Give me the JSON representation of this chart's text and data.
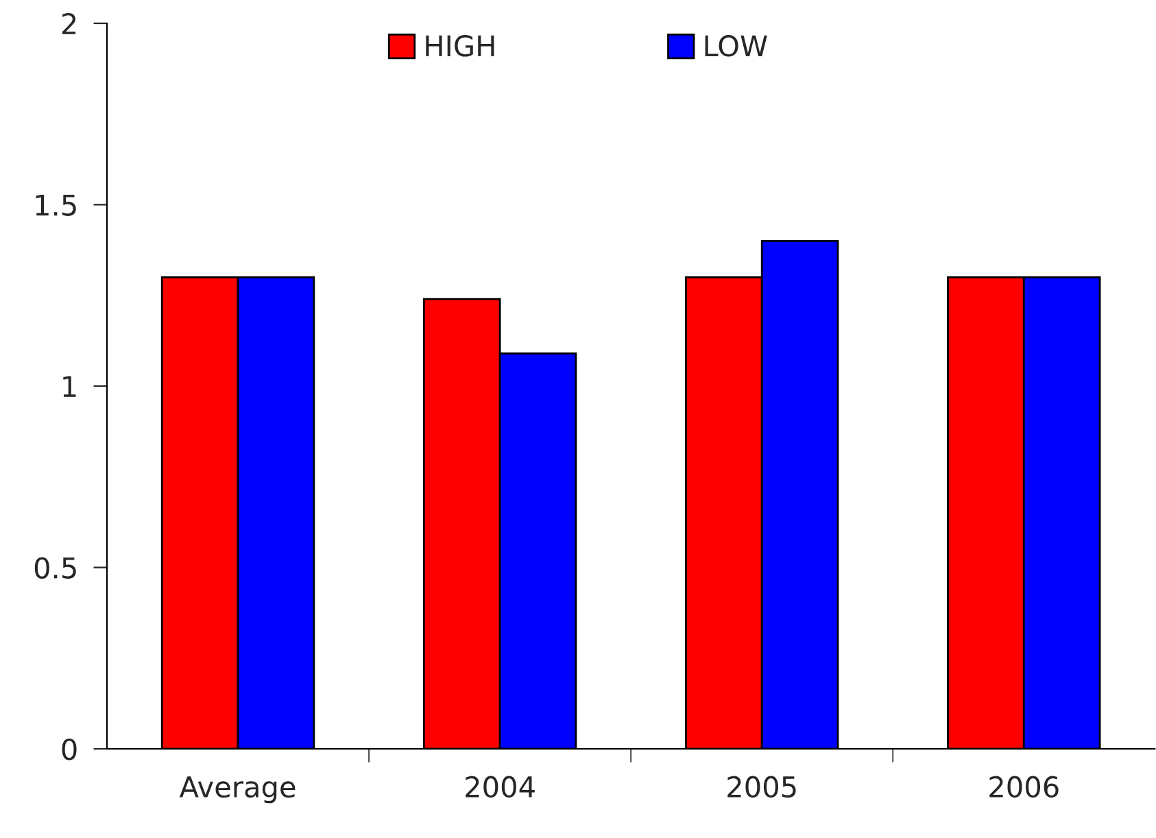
{
  "chart_data": {
    "type": "bar",
    "categories": [
      "Average",
      "2004",
      "2005",
      "2006"
    ],
    "series": [
      {
        "name": "HIGH",
        "color": "#ff0000",
        "values": [
          1.3,
          1.24,
          1.3,
          1.3
        ]
      },
      {
        "name": "LOW",
        "color": "#0000ff",
        "values": [
          1.3,
          1.09,
          1.4,
          1.3
        ]
      }
    ],
    "ylim": [
      0,
      2
    ],
    "yticks": [
      0,
      0.5,
      1,
      1.5,
      2
    ],
    "grid": false,
    "legend": "top"
  }
}
